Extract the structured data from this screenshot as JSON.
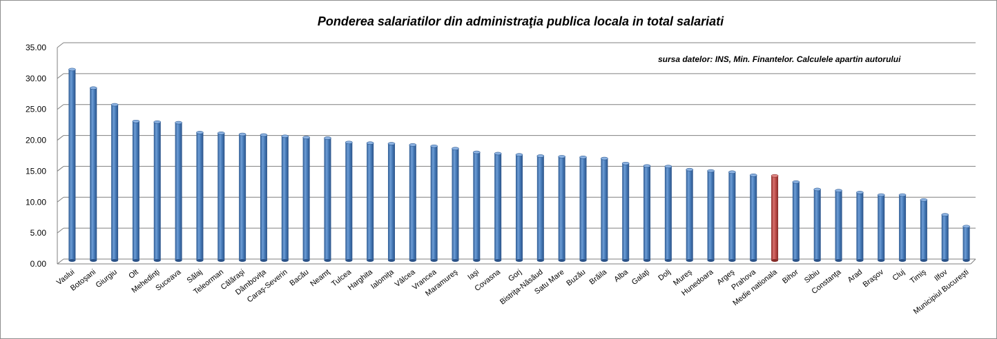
{
  "chart_data": {
    "type": "bar",
    "title": "Ponderea salariatilor din administraţia publica locala in total salariati",
    "annotation": "sursa datelor: INS, Min. Finantelor. Calculele apartin autorului",
    "xlabel": "",
    "ylabel": "",
    "ylim": [
      0,
      35
    ],
    "yticks": [
      "0.00",
      "5.00",
      "10.00",
      "15.00",
      "20.00",
      "25.00",
      "30.00",
      "35.00"
    ],
    "grid": true,
    "bar_color": "#4a7ebb",
    "highlight_color": "#c0504d",
    "highlight_category": "Medie nationala",
    "categories": [
      "Vaslui",
      "Botoşani",
      "Giurgiu",
      "Olt",
      "Mehedinţi",
      "Suceava",
      "Sălaj",
      "Teleorman",
      "Călăraşi",
      "Dâmboviţa",
      "Caraş-Severin",
      "Bacău",
      "Neamţ",
      "Tulcea",
      "Harghita",
      "Ialomiţa",
      "Vâlcea",
      "Vrancea",
      "Maramureş",
      "Iaşi",
      "Covasna",
      "Gorj",
      "Bistriţa-Năsăud",
      "Satu Mare",
      "Buzău",
      "Brăila",
      "Alba",
      "Galaţi",
      "Dolj",
      "Mureş",
      "Hunedoara",
      "Argeş",
      "Prahova",
      "Medie nationala",
      "Bihor",
      "Sibiu",
      "Constanţa",
      "Arad",
      "Braşov",
      "Cluj",
      "Timiş",
      "Ilfov",
      "Municipiul Bucureşti"
    ],
    "values": [
      31.0,
      28.0,
      25.3,
      22.6,
      22.5,
      22.4,
      20.8,
      20.7,
      20.5,
      20.4,
      20.2,
      20.0,
      19.9,
      19.2,
      19.1,
      19.0,
      18.8,
      18.6,
      18.2,
      17.6,
      17.4,
      17.2,
      17.0,
      16.9,
      16.8,
      16.6,
      15.8,
      15.4,
      15.3,
      14.8,
      14.6,
      14.4,
      13.9,
      13.8,
      12.8,
      11.6,
      11.4,
      11.1,
      10.7,
      10.7,
      9.9,
      7.5,
      5.6
    ]
  }
}
